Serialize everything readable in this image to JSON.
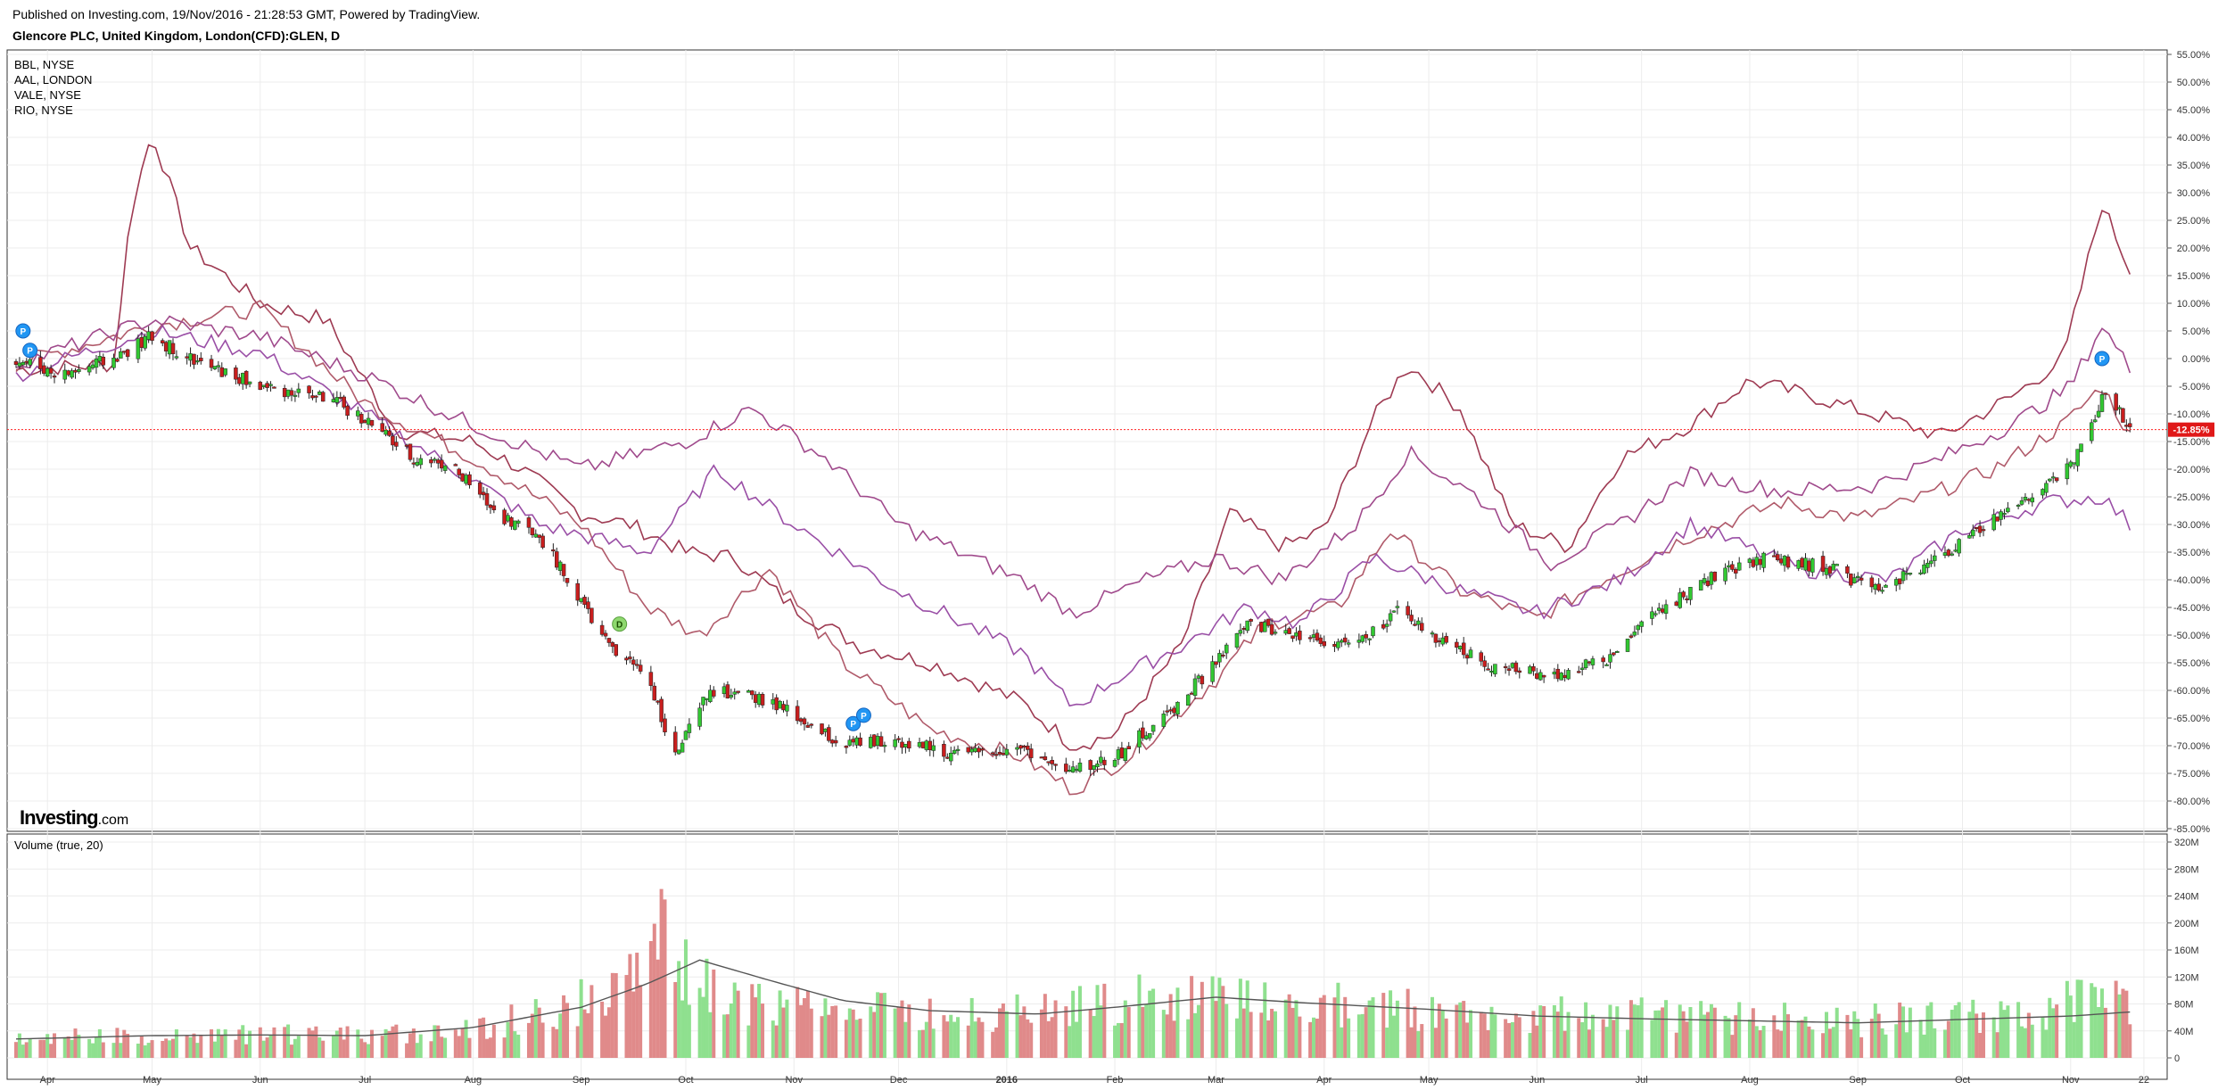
{
  "header": {
    "published": "Published on Investing.com, 19/Nov/2016 - 21:28:53 GMT, Powered by TradingView.",
    "symbol": "Glencore PLC, United Kingdom, London(CFD):GLEN, D"
  },
  "legend": [
    "BBL, NYSE",
    "AAL, LONDON",
    "VALE, NYSE",
    "RIO, NYSE"
  ],
  "logo": {
    "main": "Investing",
    "suffix": ".com"
  },
  "volume_title": "Volume (true, 20)",
  "current_label": "-12.85%",
  "colors": {
    "up": "#32c832",
    "down": "#c81e1e",
    "vol_up": "#8fe08f",
    "vol_down": "#e08a8a",
    "BBL": "#b05a6a",
    "AAL": "#9e3a52",
    "VALE": "#9a4fa6",
    "RIO": "#a04a8c",
    "volume_ma": "#555555",
    "current_line": "#ff2020"
  },
  "markers": [
    {
      "text": "P",
      "kind": "blue",
      "at": "2015-03-25",
      "pct": 5.0
    },
    {
      "text": "P",
      "kind": "blue",
      "at": "2015-03-27",
      "pct": 1.5
    },
    {
      "text": "D",
      "kind": "green",
      "at": "2015-09-12",
      "pct": -48.0
    },
    {
      "text": "P",
      "kind": "blue",
      "at": "2015-11-18",
      "pct": -66.0
    },
    {
      "text": "P",
      "kind": "blue",
      "at": "2015-11-21",
      "pct": -64.5
    },
    {
      "text": "P",
      "kind": "blue",
      "at": "2016-11-10",
      "pct": 0.0
    }
  ],
  "chart_data": [
    {
      "type": "line",
      "title": "Glencore PLC, United Kingdom, London(CFD):GLEN, D",
      "x_axis": {
        "labels": [
          "Apr",
          "May",
          "Jun",
          "Jul",
          "Aug",
          "Sep",
          "Oct",
          "Nov",
          "Dec",
          "2016",
          "Feb",
          "Mar",
          "Apr",
          "May",
          "Jun",
          "Jul",
          "Aug",
          "Sep",
          "Oct",
          "Nov",
          "22"
        ],
        "start": "2015-03-23",
        "end": "2016-11-21"
      },
      "y_axis": {
        "unit": "%",
        "range": [
          -85,
          55
        ],
        "step": 5,
        "labels": [
          "55.00%",
          "50.00%",
          "45.00%",
          "40.00%",
          "35.00%",
          "30.00%",
          "25.00%",
          "20.00%",
          "15.00%",
          "10.00%",
          "5.00%",
          "0.00%",
          "-5.00%",
          "-10.00%",
          "-15.00%",
          "-20.00%",
          "-25.00%",
          "-30.00%",
          "-35.00%",
          "-40.00%",
          "-45.00%",
          "-50.00%",
          "-55.00%",
          "-60.00%",
          "-65.00%",
          "-70.00%",
          "-75.00%",
          "-80.00%",
          "-85.00%"
        ]
      },
      "grid": true,
      "series": [
        {
          "name": "GLEN",
          "style": "candles",
          "points": [
            [
              "2015-03-23",
              0
            ],
            [
              "2015-04-05",
              -3
            ],
            [
              "2015-04-20",
              0
            ],
            [
              "2015-05-01",
              4
            ],
            [
              "2015-05-15",
              -1
            ],
            [
              "2015-06-01",
              -5
            ],
            [
              "2015-06-20",
              -7
            ],
            [
              "2015-07-01",
              -11
            ],
            [
              "2015-07-15",
              -18
            ],
            [
              "2015-07-25",
              -19
            ],
            [
              "2015-08-08",
              -28
            ],
            [
              "2015-08-20",
              -32
            ],
            [
              "2015-09-01",
              -44
            ],
            [
              "2015-09-10",
              -53
            ],
            [
              "2015-09-20",
              -57
            ],
            [
              "2015-09-28",
              -72
            ],
            [
              "2015-10-08",
              -60
            ],
            [
              "2015-10-25",
              -62
            ],
            [
              "2015-11-15",
              -70
            ],
            [
              "2015-12-01",
              -69
            ],
            [
              "2015-12-20",
              -72
            ],
            [
              "2016-01-05",
              -70
            ],
            [
              "2016-01-18",
              -75
            ],
            [
              "2016-02-01",
              -72
            ],
            [
              "2016-02-15",
              -65
            ],
            [
              "2016-03-01",
              -55
            ],
            [
              "2016-03-10",
              -48
            ],
            [
              "2016-03-25",
              -50
            ],
            [
              "2016-04-10",
              -52
            ],
            [
              "2016-04-22",
              -46
            ],
            [
              "2016-05-05",
              -51
            ],
            [
              "2016-05-20",
              -56
            ],
            [
              "2016-06-05",
              -57
            ],
            [
              "2016-06-20",
              -55
            ],
            [
              "2016-07-05",
              -46
            ],
            [
              "2016-07-20",
              -40
            ],
            [
              "2016-08-05",
              -36
            ],
            [
              "2016-08-25",
              -38
            ],
            [
              "2016-09-05",
              -42
            ],
            [
              "2016-09-20",
              -38
            ],
            [
              "2016-10-05",
              -31
            ],
            [
              "2016-10-20",
              -25
            ],
            [
              "2016-11-01",
              -19
            ],
            [
              "2016-11-08",
              -11
            ],
            [
              "2016-11-11",
              -6
            ],
            [
              "2016-11-18",
              -12.85
            ]
          ]
        },
        {
          "name": "AAL",
          "points": [
            [
              "2015-03-23",
              -2
            ],
            [
              "2015-04-20",
              -1
            ],
            [
              "2015-04-25",
              27
            ],
            [
              "2015-05-01",
              41
            ],
            [
              "2015-05-12",
              20
            ],
            [
              "2015-06-01",
              10
            ],
            [
              "2015-06-20",
              7
            ],
            [
              "2015-07-10",
              -13
            ],
            [
              "2015-08-01",
              -15
            ],
            [
              "2015-08-15",
              -20
            ],
            [
              "2015-09-01",
              -28
            ],
            [
              "2015-09-15",
              -30
            ],
            [
              "2015-10-01",
              -35
            ],
            [
              "2015-10-15",
              -36
            ],
            [
              "2015-11-01",
              -45
            ],
            [
              "2015-11-20",
              -52
            ],
            [
              "2015-12-10",
              -55
            ],
            [
              "2016-01-05",
              -62
            ],
            [
              "2016-01-20",
              -70
            ],
            [
              "2016-02-01",
              -68
            ],
            [
              "2016-02-20",
              -52
            ],
            [
              "2016-03-05",
              -28
            ],
            [
              "2016-03-20",
              -34
            ],
            [
              "2016-04-01",
              -31
            ],
            [
              "2016-04-15",
              -11
            ],
            [
              "2016-04-25",
              -1
            ],
            [
              "2016-05-10",
              -9
            ],
            [
              "2016-05-25",
              -30
            ],
            [
              "2016-06-10",
              -34
            ],
            [
              "2016-06-25",
              -18
            ],
            [
              "2016-07-15",
              -12
            ],
            [
              "2016-08-01",
              -4
            ],
            [
              "2016-08-20",
              -7
            ],
            [
              "2016-09-10",
              -11
            ],
            [
              "2016-09-25",
              -14
            ],
            [
              "2016-10-15",
              -7
            ],
            [
              "2016-10-30",
              0
            ],
            [
              "2016-11-10",
              28
            ],
            [
              "2016-11-18",
              16
            ]
          ]
        },
        {
          "name": "BBL",
          "points": [
            [
              "2015-03-23",
              -1
            ],
            [
              "2015-05-01",
              6
            ],
            [
              "2015-06-01",
              9
            ],
            [
              "2015-07-01",
              -8
            ],
            [
              "2015-08-01",
              -18
            ],
            [
              "2015-09-01",
              -30
            ],
            [
              "2015-09-20",
              -45
            ],
            [
              "2015-10-05",
              -50
            ],
            [
              "2015-10-25",
              -38
            ],
            [
              "2015-11-15",
              -55
            ],
            [
              "2015-12-10",
              -67
            ],
            [
              "2016-01-05",
              -72
            ],
            [
              "2016-01-20",
              -78
            ],
            [
              "2016-02-05",
              -72
            ],
            [
              "2016-03-01",
              -58
            ],
            [
              "2016-03-15",
              -48
            ],
            [
              "2016-04-05",
              -45
            ],
            [
              "2016-04-20",
              -31
            ],
            [
              "2016-05-10",
              -42
            ],
            [
              "2016-06-01",
              -47
            ],
            [
              "2016-06-20",
              -40
            ],
            [
              "2016-07-15",
              -32
            ],
            [
              "2016-08-10",
              -26
            ],
            [
              "2016-09-01",
              -29
            ],
            [
              "2016-09-20",
              -25
            ],
            [
              "2016-10-10",
              -20
            ],
            [
              "2016-10-30",
              -12
            ],
            [
              "2016-11-10",
              -5
            ],
            [
              "2016-11-18",
              -14
            ]
          ]
        },
        {
          "name": "VALE",
          "points": [
            [
              "2015-03-23",
              -3
            ],
            [
              "2015-05-01",
              5
            ],
            [
              "2015-06-01",
              1
            ],
            [
              "2015-07-01",
              -10
            ],
            [
              "2015-08-01",
              -22
            ],
            [
              "2015-08-20",
              -30
            ],
            [
              "2015-09-20",
              -35
            ],
            [
              "2015-10-10",
              -20
            ],
            [
              "2015-11-01",
              -30
            ],
            [
              "2015-12-01",
              -42
            ],
            [
              "2016-01-05",
              -53
            ],
            [
              "2016-01-20",
              -63
            ],
            [
              "2016-02-01",
              -58
            ],
            [
              "2016-02-20",
              -52
            ],
            [
              "2016-03-10",
              -45
            ],
            [
              "2016-03-25",
              -48
            ],
            [
              "2016-04-15",
              -36
            ],
            [
              "2016-05-10",
              -42
            ],
            [
              "2016-06-01",
              -46
            ],
            [
              "2016-06-25",
              -40
            ],
            [
              "2016-07-15",
              -30
            ],
            [
              "2016-08-15",
              -38
            ],
            [
              "2016-09-10",
              -40
            ],
            [
              "2016-10-01",
              -31
            ],
            [
              "2016-10-25",
              -26
            ],
            [
              "2016-11-10",
              -25
            ],
            [
              "2016-11-18",
              -30
            ]
          ]
        },
        {
          "name": "RIO",
          "points": [
            [
              "2015-03-23",
              -1
            ],
            [
              "2015-05-01",
              7
            ],
            [
              "2015-06-01",
              4
            ],
            [
              "2015-07-01",
              -3
            ],
            [
              "2015-08-01",
              -12
            ],
            [
              "2015-09-01",
              -20
            ],
            [
              "2015-10-01",
              -15
            ],
            [
              "2015-10-20",
              -9
            ],
            [
              "2015-11-10",
              -18
            ],
            [
              "2015-12-01",
              -30
            ],
            [
              "2016-01-05",
              -40
            ],
            [
              "2016-01-20",
              -46
            ],
            [
              "2016-02-10",
              -40
            ],
            [
              "2016-03-01",
              -36
            ],
            [
              "2016-03-20",
              -40
            ],
            [
              "2016-04-10",
              -30
            ],
            [
              "2016-04-25",
              -17
            ],
            [
              "2016-05-15",
              -25
            ],
            [
              "2016-06-05",
              -37
            ],
            [
              "2016-06-25",
              -30
            ],
            [
              "2016-07-15",
              -21
            ],
            [
              "2016-08-10",
              -24
            ],
            [
              "2016-09-05",
              -23
            ],
            [
              "2016-09-25",
              -18
            ],
            [
              "2016-10-15",
              -12
            ],
            [
              "2016-11-01",
              -5
            ],
            [
              "2016-11-10",
              6
            ],
            [
              "2016-11-18",
              -2
            ]
          ]
        }
      ],
      "current_value": -12.85
    },
    {
      "type": "bar",
      "title": "Volume (true, 20)",
      "y_axis": {
        "range": [
          0,
          320
        ],
        "unit": "M",
        "labels": [
          "320M",
          "280M",
          "240M",
          "200M",
          "160M",
          "120M",
          "80M",
          "40M",
          "0"
        ]
      },
      "volume_profile": [
        [
          "2015-03-23",
          30
        ],
        [
          "2015-05-01",
          33
        ],
        [
          "2015-06-01",
          35
        ],
        [
          "2015-07-01",
          32
        ],
        [
          "2015-08-01",
          45
        ],
        [
          "2015-08-25",
          70
        ],
        [
          "2015-09-10",
          95
        ],
        [
          "2015-09-25",
          180
        ],
        [
          "2015-10-05",
          110
        ],
        [
          "2015-10-25",
          75
        ],
        [
          "2015-11-15",
          70
        ],
        [
          "2015-12-10",
          65
        ],
        [
          "2016-01-10",
          70
        ],
        [
          "2016-01-30",
          85
        ],
        [
          "2016-02-20",
          90
        ],
        [
          "2016-03-10",
          100
        ],
        [
          "2016-04-01",
          80
        ],
        [
          "2016-05-01",
          70
        ],
        [
          "2016-06-01",
          62
        ],
        [
          "2016-07-01",
          68
        ],
        [
          "2016-08-01",
          58
        ],
        [
          "2016-09-01",
          55
        ],
        [
          "2016-10-01",
          60
        ],
        [
          "2016-10-25",
          70
        ],
        [
          "2016-11-10",
          95
        ],
        [
          "2016-11-18",
          70
        ]
      ],
      "volume_ma": [
        [
          "2015-03-23",
          28
        ],
        [
          "2015-05-01",
          33
        ],
        [
          "2015-06-01",
          34
        ],
        [
          "2015-07-01",
          33
        ],
        [
          "2015-08-01",
          45
        ],
        [
          "2015-09-01",
          75
        ],
        [
          "2015-09-20",
          110
        ],
        [
          "2015-10-05",
          145
        ],
        [
          "2015-10-25",
          115
        ],
        [
          "2015-11-15",
          85
        ],
        [
          "2015-12-10",
          70
        ],
        [
          "2016-01-10",
          65
        ],
        [
          "2016-02-01",
          75
        ],
        [
          "2016-03-01",
          90
        ],
        [
          "2016-03-25",
          82
        ],
        [
          "2016-05-01",
          72
        ],
        [
          "2016-06-01",
          62
        ],
        [
          "2016-07-01",
          58
        ],
        [
          "2016-08-01",
          55
        ],
        [
          "2016-09-01",
          52
        ],
        [
          "2016-10-01",
          57
        ],
        [
          "2016-11-01",
          62
        ],
        [
          "2016-11-18",
          68
        ]
      ]
    }
  ]
}
